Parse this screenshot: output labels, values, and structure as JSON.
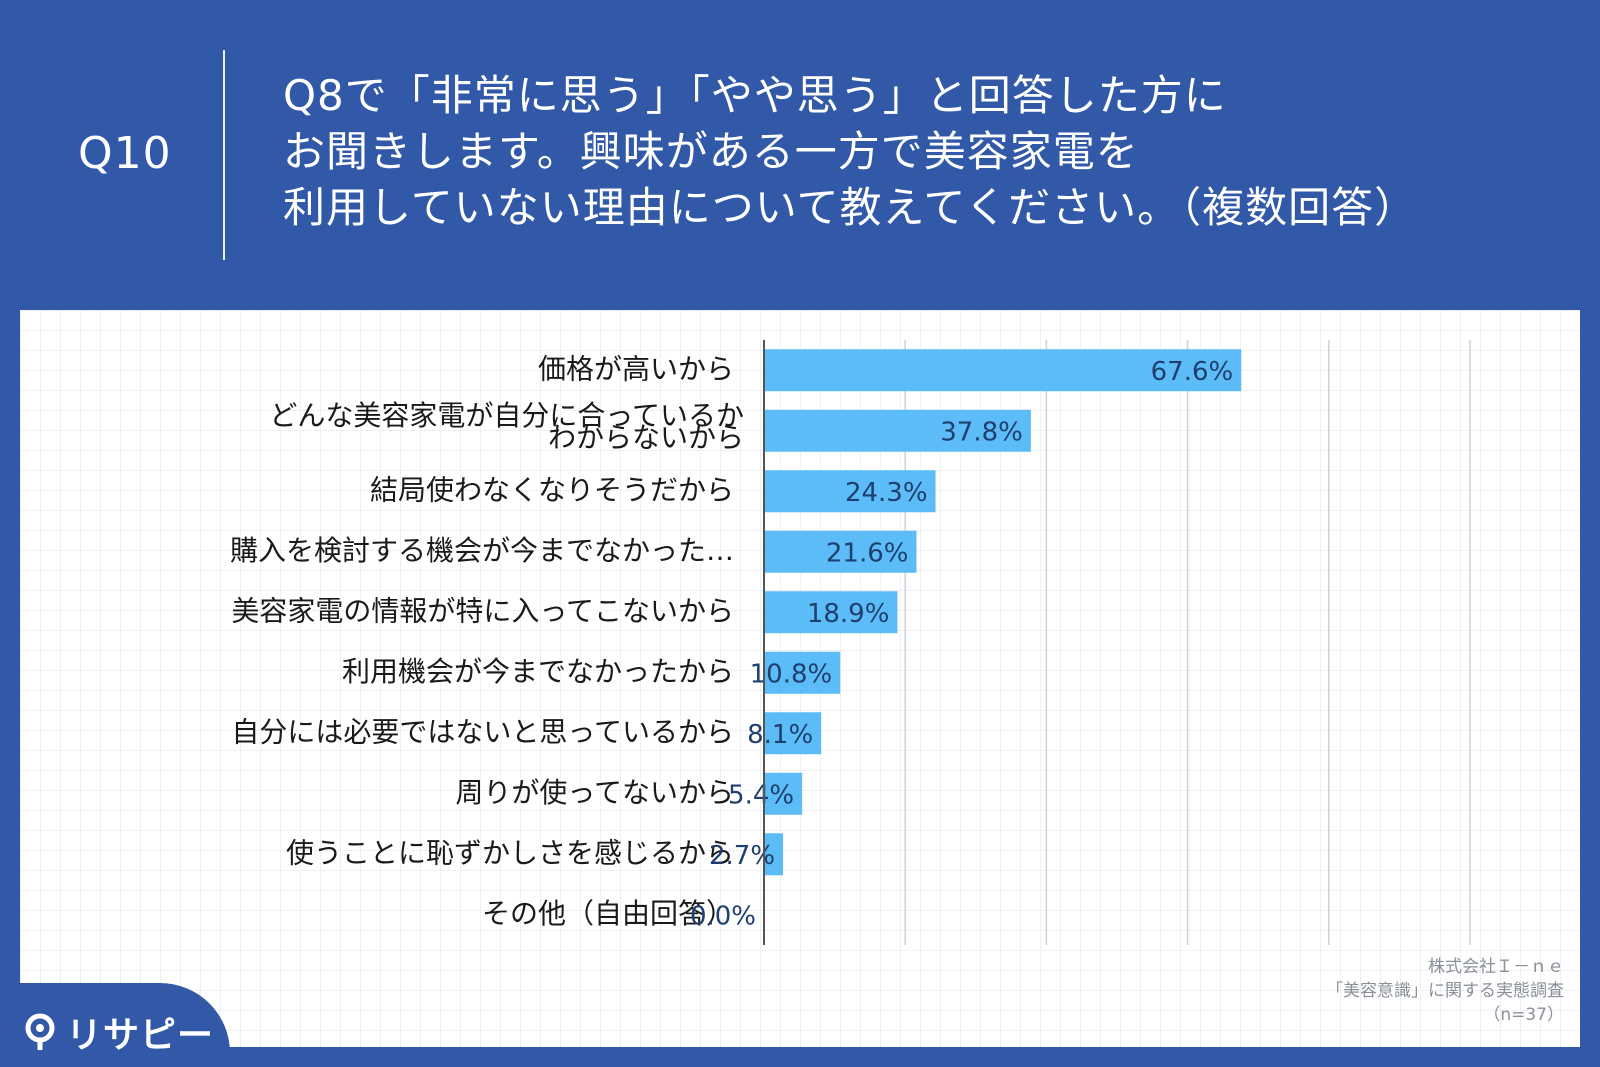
{
  "header": {
    "question_number": "Q10",
    "question_lines": [
      "Q8で「非常に思う」「やや思う」と回答した方に",
      "お聞きします。興味がある一方で美容家電を",
      "利用していない理由について教えてください。（複数回答）"
    ]
  },
  "chart_data": {
    "type": "bar",
    "orientation": "horizontal",
    "categories": [
      "価格が高いから",
      "どんな美容家電が自分に合っているか わからないから",
      "結局使わなくなりそうだから",
      "購入を検討する機会が今までなかった…",
      "美容家電の情報が特に入ってこないから",
      "利用機会が今までなかったから",
      "自分には必要ではないと思っているから",
      "周りが使ってないから",
      "使うことに恥ずかしさを感じるから",
      "その他（自由回答）"
    ],
    "values": [
      67.6,
      37.8,
      24.3,
      21.6,
      18.9,
      10.8,
      8.1,
      5.4,
      2.7,
      0.0
    ],
    "value_labels": [
      "67.6%",
      "37.8%",
      "24.3%",
      "21.6%",
      "18.9%",
      "10.8%",
      "8.1%",
      "5.4%",
      "2.7%",
      "0.0%"
    ],
    "xlim": [
      0,
      100
    ],
    "grid": true,
    "bar_color": "#5bbcf7"
  },
  "source": {
    "lines": [
      "株式会社Ｉ－ｎｅ",
      "「美容意識」に関する実態調査",
      "（n=37）"
    ]
  },
  "logo": {
    "text": "リサピー"
  }
}
